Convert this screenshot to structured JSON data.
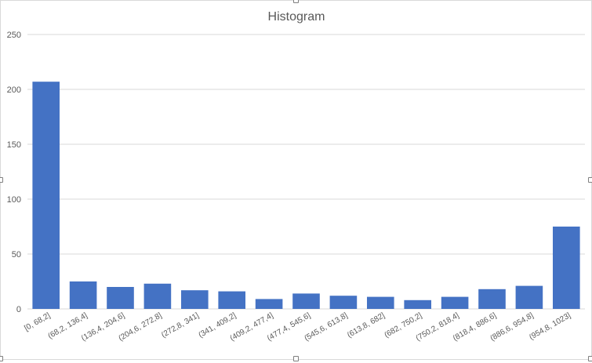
{
  "chart_data": {
    "type": "bar",
    "title": "Histogram",
    "xlabel": "",
    "ylabel": "",
    "ylim": [
      0,
      250
    ],
    "yticks": [
      0,
      50,
      100,
      150,
      200,
      250
    ],
    "grid": true,
    "legend": "none",
    "bar_color": "#4472c4",
    "categories": [
      "[0, 68,2]",
      "(68,2, 136,4]",
      "(136,4, 204,6]",
      "(204,6, 272,8]",
      "(272,8, 341]",
      "(341, 409,2]",
      "(409,2, 477,4]",
      "(477,4, 545,6]",
      "(545,6, 613,8]",
      "(613,8, 682]",
      "(682, 750,2]",
      "(750,2, 818,4]",
      "(818,4, 886,6]",
      "(886,6, 954,8]",
      "(954,8, 1023]"
    ],
    "values": [
      207,
      25,
      20,
      23,
      17,
      16,
      9,
      14,
      12,
      11,
      8,
      11,
      18,
      21,
      75
    ]
  }
}
